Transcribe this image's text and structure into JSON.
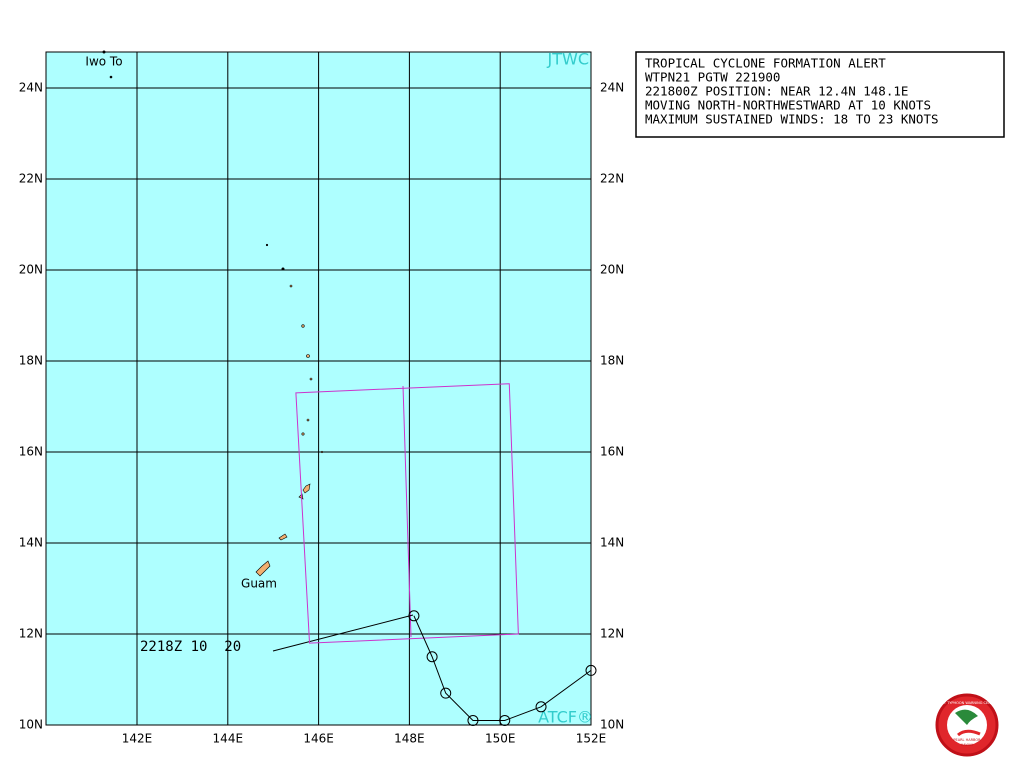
{
  "alert": {
    "lines": [
      "TROPICAL CYCLONE FORMATION ALERT",
      "WTPN21 PGTW 221900",
      "221800Z POSITION: NEAR 12.4N 148.1E",
      "MOVING NORTH-NORTHWESTWARD AT 10 KNOTS",
      "MAXIMUM SUSTAINED WINDS: 18 TO 23 KNOTS"
    ]
  },
  "map": {
    "lon_ticks": [
      {
        "value": 142,
        "label": "142E"
      },
      {
        "value": 144,
        "label": "144E"
      },
      {
        "value": 146,
        "label": "146E"
      },
      {
        "value": 148,
        "label": "148E"
      },
      {
        "value": 150,
        "label": "150E"
      },
      {
        "value": 152,
        "label": "152E"
      }
    ],
    "lat_ticks": [
      {
        "value": 10,
        "label": "10N"
      },
      {
        "value": 12,
        "label": "12N"
      },
      {
        "value": 14,
        "label": "14N"
      },
      {
        "value": 16,
        "label": "16N"
      },
      {
        "value": 18,
        "label": "18N"
      },
      {
        "value": 20,
        "label": "20N"
      },
      {
        "value": 22,
        "label": "22N"
      },
      {
        "value": 24,
        "label": "24N"
      }
    ],
    "places": [
      "Iwo To",
      "Guam"
    ],
    "source_label": "JTWC",
    "atcf_label": "ATCF®",
    "track_label": "2218Z 10  20",
    "track": {
      "lat": [
        12.4,
        11.5,
        10.7,
        10.1,
        10.1,
        10.4,
        11.2
      ],
      "lon": [
        148.1,
        148.5,
        148.8,
        149.4,
        150.1,
        150.9,
        152.0
      ]
    },
    "alert_area": {
      "lat": [
        17.3,
        17.5,
        12.0,
        11.8
      ],
      "lon": [
        145.5,
        150.2,
        150.4,
        145.8
      ]
    }
  },
  "logo": {
    "lines": [
      "JOINT TYPHOON WARNING CENTER",
      "PEARL HARBOR",
      "HAWAII"
    ]
  }
}
